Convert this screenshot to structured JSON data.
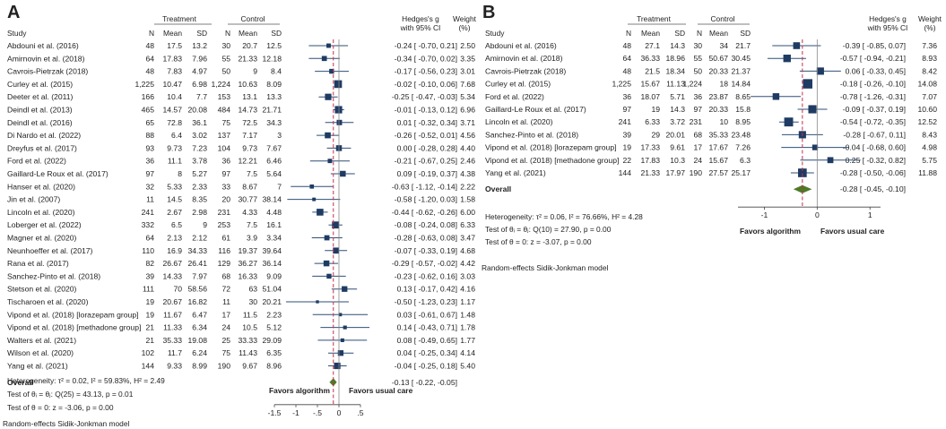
{
  "chart_data": [
    {
      "type": "forest",
      "panel_label": "A",
      "headers": {
        "study": "Study",
        "treatment": "Treatment",
        "control": "Control",
        "n": "N",
        "mean": "Mean",
        "sd": "SD",
        "effect_line1": "Hedges's g",
        "effect_line2": "with 95% CI",
        "weight_line1": "Weight",
        "weight_line2": "(%)"
      },
      "studies": [
        {
          "name": "Abdouni et al. (2016)",
          "t_n": "48",
          "t_mean": "17.5",
          "t_sd": "13.2",
          "c_n": "30",
          "c_mean": "20.7",
          "c_sd": "12.5",
          "g": -0.24,
          "lo": -0.7,
          "hi": 0.21,
          "ci": "-0.24 [ -0.70,  0.21]",
          "weight": "2.50"
        },
        {
          "name": "Amirnovin et al. (2018)",
          "t_n": "64",
          "t_mean": "17.83",
          "t_sd": "7.96",
          "c_n": "55",
          "c_mean": "21.33",
          "c_sd": "12.18",
          "g": -0.34,
          "lo": -0.7,
          "hi": 0.02,
          "ci": "-0.34 [ -0.70,  0.02]",
          "weight": "3.35"
        },
        {
          "name": "Cavrois-Pietrzak (2018)",
          "t_n": "48",
          "t_mean": "7.83",
          "t_sd": "4.97",
          "c_n": "50",
          "c_mean": "9",
          "c_sd": "8.4",
          "g": -0.17,
          "lo": -0.56,
          "hi": 0.23,
          "ci": "-0.17 [ -0.56,  0.23]",
          "weight": "3.01"
        },
        {
          "name": "Curley et al. (2015)",
          "t_n": "1,225",
          "t_mean": "10.47",
          "t_sd": "6.98",
          "c_n": "1,224",
          "c_mean": "10.63",
          "c_sd": "8.09",
          "g": -0.02,
          "lo": -0.1,
          "hi": 0.06,
          "ci": "-0.02 [ -0.10,  0.06]",
          "weight": "7.68"
        },
        {
          "name": "Deeter et al. (2011)",
          "t_n": "166",
          "t_mean": "10.4",
          "t_sd": "7.7",
          "c_n": "153",
          "c_mean": "13.1",
          "c_sd": "13.3",
          "g": -0.25,
          "lo": -0.47,
          "hi": -0.03,
          "ci": "-0.25 [ -0.47, -0.03]",
          "weight": "5.34"
        },
        {
          "name": "Deindl et al. (2013)",
          "t_n": "465",
          "t_mean": "14.57",
          "t_sd": "20.08",
          "c_n": "484",
          "c_mean": "14.73",
          "c_sd": "21.71",
          "g": -0.01,
          "lo": -0.13,
          "hi": 0.12,
          "ci": "-0.01 [ -0.13,  0.12]",
          "weight": "6.96"
        },
        {
          "name": "Deindl et al. (2016)",
          "t_n": "65",
          "t_mean": "72.8",
          "t_sd": "36.1",
          "c_n": "75",
          "c_mean": "72.5",
          "c_sd": "34.3",
          "g": 0.01,
          "lo": -0.32,
          "hi": 0.34,
          "ci": "0.01 [ -0.32,  0.34]",
          "weight": "3.71"
        },
        {
          "name": "Di Nardo et al. (2022)",
          "t_n": "88",
          "t_mean": "6.4",
          "t_sd": "3.02",
          "c_n": "137",
          "c_mean": "7.17",
          "c_sd": "3",
          "g": -0.26,
          "lo": -0.52,
          "hi": 0.01,
          "ci": "-0.26 [ -0.52,  0.01]",
          "weight": "4.56"
        },
        {
          "name": "Dreyfus et al. (2017)",
          "t_n": "93",
          "t_mean": "9.73",
          "t_sd": "7.23",
          "c_n": "104",
          "c_mean": "9.73",
          "c_sd": "7.67",
          "g": 0.0,
          "lo": -0.28,
          "hi": 0.28,
          "ci": "0.00 [ -0.28,  0.28]",
          "weight": "4.40"
        },
        {
          "name": "Ford et al. (2022)",
          "t_n": "36",
          "t_mean": "11.1",
          "t_sd": "3.78",
          "c_n": "36",
          "c_mean": "12.21",
          "c_sd": "6.46",
          "g": -0.21,
          "lo": -0.67,
          "hi": 0.25,
          "ci": "-0.21 [ -0.67,  0.25]",
          "weight": "2.46"
        },
        {
          "name": "Gaillard-Le Roux et al. (2017)",
          "t_n": "97",
          "t_mean": "8",
          "t_sd": "5.27",
          "c_n": "97",
          "c_mean": "7.5",
          "c_sd": "5.64",
          "g": 0.09,
          "lo": -0.19,
          "hi": 0.37,
          "ci": "0.09 [ -0.19,  0.37]",
          "weight": "4.38"
        },
        {
          "name": "Hanser et al. (2020)",
          "t_n": "32",
          "t_mean": "5.33",
          "t_sd": "2.33",
          "c_n": "33",
          "c_mean": "8.67",
          "c_sd": "7",
          "g": -0.63,
          "lo": -1.12,
          "hi": -0.14,
          "ci": "-0.63 [ -1.12, -0.14]",
          "weight": "2.22"
        },
        {
          "name": "Jin et al. (2007)",
          "t_n": "11",
          "t_mean": "14.5",
          "t_sd": "8.35",
          "c_n": "20",
          "c_mean": "30.77",
          "c_sd": "38.14",
          "g": -0.58,
          "lo": -1.2,
          "hi": 0.03,
          "ci": "-0.58 [ -1.20,  0.03]",
          "weight": "1.58"
        },
        {
          "name": "Lincoln et al. (2020)",
          "t_n": "241",
          "t_mean": "2.67",
          "t_sd": "2.98",
          "c_n": "231",
          "c_mean": "4.33",
          "c_sd": "4.48",
          "g": -0.44,
          "lo": -0.62,
          "hi": -0.26,
          "ci": "-0.44 [ -0.62, -0.26]",
          "weight": "6.00"
        },
        {
          "name": "Loberger et al. (2022)",
          "t_n": "332",
          "t_mean": "6.5",
          "t_sd": "9",
          "c_n": "253",
          "c_mean": "7.5",
          "c_sd": "16.1",
          "g": -0.08,
          "lo": -0.24,
          "hi": 0.08,
          "ci": "-0.08 [ -0.24,  0.08]",
          "weight": "6.33"
        },
        {
          "name": "Magner et al. (2020)",
          "t_n": "64",
          "t_mean": "2.13",
          "t_sd": "2.12",
          "c_n": "61",
          "c_mean": "3.9",
          "c_sd": "3.34",
          "g": -0.28,
          "lo": -0.63,
          "hi": 0.08,
          "ci": "-0.28 [ -0.63,  0.08]",
          "weight": "3.47"
        },
        {
          "name": "Neunhoeffer et al. (2017)",
          "t_n": "110",
          "t_mean": "16.9",
          "t_sd": "34.33",
          "c_n": "116",
          "c_mean": "19.37",
          "c_sd": "39.64",
          "g": -0.07,
          "lo": -0.33,
          "hi": 0.19,
          "ci": "-0.07 [ -0.33,  0.19]",
          "weight": "4.68"
        },
        {
          "name": "Rana et al. (2017)",
          "t_n": "82",
          "t_mean": "26.67",
          "t_sd": "26.41",
          "c_n": "129",
          "c_mean": "36.27",
          "c_sd": "36.14",
          "g": -0.29,
          "lo": -0.57,
          "hi": -0.02,
          "ci": "-0.29 [ -0.57, -0.02]",
          "weight": "4.42"
        },
        {
          "name": "Sanchez-Pinto et al. (2018)",
          "t_n": "39",
          "t_mean": "14.33",
          "t_sd": "7.97",
          "c_n": "68",
          "c_mean": "16.33",
          "c_sd": "9.09",
          "g": -0.23,
          "lo": -0.62,
          "hi": 0.16,
          "ci": "-0.23 [ -0.62,  0.16]",
          "weight": "3.03"
        },
        {
          "name": "Stetson et al. (2020)",
          "t_n": "111",
          "t_mean": "70",
          "t_sd": "58.56",
          "c_n": "72",
          "c_mean": "63",
          "c_sd": "51.04",
          "g": 0.13,
          "lo": -0.17,
          "hi": 0.42,
          "ci": "0.13 [ -0.17,  0.42]",
          "weight": "4.16"
        },
        {
          "name": "Tischaroen et al. (2020)",
          "t_n": "19",
          "t_mean": "20.67",
          "t_sd": "16.82",
          "c_n": "11",
          "c_mean": "30",
          "c_sd": "20.21",
          "g": -0.5,
          "lo": -1.23,
          "hi": 0.23,
          "ci": "-0.50 [ -1.23,  0.23]",
          "weight": "1.17"
        },
        {
          "name": "Vipond et al. (2018) [lorazepam group]",
          "t_n": "19",
          "t_mean": "11.67",
          "t_sd": "6.47",
          "c_n": "17",
          "c_mean": "11.5",
          "c_sd": "2.23",
          "g": 0.03,
          "lo": -0.61,
          "hi": 0.67,
          "ci": "0.03 [ -0.61,  0.67]",
          "weight": "1.48"
        },
        {
          "name": "Vipond et al. (2018) [methadone group]",
          "t_n": "21",
          "t_mean": "11.33",
          "t_sd": "6.34",
          "c_n": "24",
          "c_mean": "10.5",
          "c_sd": "5.12",
          "g": 0.14,
          "lo": -0.43,
          "hi": 0.71,
          "ci": "0.14 [ -0.43,  0.71]",
          "weight": "1.78"
        },
        {
          "name": "Walters et al. (2021)",
          "t_n": "21",
          "t_mean": "35.33",
          "t_sd": "19.08",
          "c_n": "25",
          "c_mean": "33.33",
          "c_sd": "29.09",
          "g": 0.08,
          "lo": -0.49,
          "hi": 0.65,
          "ci": "0.08 [ -0.49,  0.65]",
          "weight": "1.77"
        },
        {
          "name": "Wilson et al. (2020)",
          "t_n": "102",
          "t_mean": "11.7",
          "t_sd": "6.24",
          "c_n": "75",
          "c_mean": "11.43",
          "c_sd": "6.35",
          "g": 0.04,
          "lo": -0.25,
          "hi": 0.34,
          "ci": "0.04 [ -0.25,  0.34]",
          "weight": "4.14"
        },
        {
          "name": "Yang et al. (2021)",
          "t_n": "144",
          "t_mean": "9.33",
          "t_sd": "8.99",
          "c_n": "190",
          "c_mean": "9.67",
          "c_sd": "8.96",
          "g": -0.04,
          "lo": -0.25,
          "hi": 0.18,
          "ci": "-0.04 [ -0.25,  0.18]",
          "weight": "5.40"
        }
      ],
      "overall": {
        "label": "Overall",
        "g": -0.13,
        "lo": -0.22,
        "hi": -0.05,
        "ci": "-0.13 [ -0.22, -0.05]"
      },
      "heterogeneity": "Heterogeneity: τ² = 0.02, I² = 59.83%, H² = 2.49",
      "test_theta": "Test of θᵢ = θⱼ: Q(25) = 43.13, p = 0.01",
      "test_zero": "Test of θ = 0: z = -3.06, p = 0.00",
      "favors_left": "Favors algorithm",
      "favors_right": "Favors usual care",
      "xlim": [
        -1.5,
        0.5
      ],
      "ticks": [
        -1.5,
        -1,
        -0.5,
        0,
        0.5
      ],
      "tick_labels": [
        "-1.5",
        "-1",
        "-.5",
        "0",
        ".5"
      ],
      "model": "Random-effects Sidik-Jonkman model"
    },
    {
      "type": "forest",
      "panel_label": "B",
      "headers": {
        "study": "Study",
        "treatment": "Treatment",
        "control": "Control",
        "n": "N",
        "mean": "Mean",
        "sd": "SD",
        "effect_line1": "Hedges's g",
        "effect_line2": "with 95% CI",
        "weight_line1": "Weight",
        "weight_line2": "(%)"
      },
      "studies": [
        {
          "name": "Abdouni et al. (2016)",
          "t_n": "48",
          "t_mean": "27.1",
          "t_sd": "14.3",
          "c_n": "30",
          "c_mean": "34",
          "c_sd": "21.7",
          "g": -0.39,
          "lo": -0.85,
          "hi": 0.07,
          "ci": "-0.39 [ -0.85,  0.07]",
          "weight": "7.36"
        },
        {
          "name": "Amirnovin et al. (2018)",
          "t_n": "64",
          "t_mean": "36.33",
          "t_sd": "18.96",
          "c_n": "55",
          "c_mean": "50.67",
          "c_sd": "30.45",
          "g": -0.57,
          "lo": -0.94,
          "hi": -0.21,
          "ci": "-0.57 [ -0.94, -0.21]",
          "weight": "8.93"
        },
        {
          "name": "Cavrois-Pietrzak (2018)",
          "t_n": "48",
          "t_mean": "21.5",
          "t_sd": "18.34",
          "c_n": "50",
          "c_mean": "20.33",
          "c_sd": "21.37",
          "g": 0.06,
          "lo": -0.33,
          "hi": 0.45,
          "ci": "0.06 [ -0.33,  0.45]",
          "weight": "8.42"
        },
        {
          "name": "Curley et al. (2015)",
          "t_n": "1,225",
          "t_mean": "15.67",
          "t_sd": "11.13",
          "c_n": "1,224",
          "c_mean": "18",
          "c_sd": "14.84",
          "g": -0.18,
          "lo": -0.26,
          "hi": -0.1,
          "ci": "-0.18 [ -0.26, -0.10]",
          "weight": "14.08"
        },
        {
          "name": "Ford et al. (2022)",
          "t_n": "36",
          "t_mean": "18.07",
          "t_sd": "5.71",
          "c_n": "36",
          "c_mean": "23.87",
          "c_sd": "8.65",
          "g": -0.78,
          "lo": -1.26,
          "hi": -0.31,
          "ci": "-0.78 [ -1.26, -0.31]",
          "weight": "7.07"
        },
        {
          "name": "Gaillard-Le Roux et al. (2017)",
          "t_n": "97",
          "t_mean": "19",
          "t_sd": "14.3",
          "c_n": "97",
          "c_mean": "20.33",
          "c_sd": "15.8",
          "g": -0.09,
          "lo": -0.37,
          "hi": 0.19,
          "ci": "-0.09 [ -0.37,  0.19]",
          "weight": "10.60"
        },
        {
          "name": "Lincoln et al. (2020)",
          "t_n": "241",
          "t_mean": "6.33",
          "t_sd": "3.72",
          "c_n": "231",
          "c_mean": "10",
          "c_sd": "8.95",
          "g": -0.54,
          "lo": -0.72,
          "hi": -0.35,
          "ci": "-0.54 [ -0.72, -0.35]",
          "weight": "12.52"
        },
        {
          "name": "Sanchez-Pinto et al. (2018)",
          "t_n": "39",
          "t_mean": "29",
          "t_sd": "20.01",
          "c_n": "68",
          "c_mean": "35.33",
          "c_sd": "23.48",
          "g": -0.28,
          "lo": -0.67,
          "hi": 0.11,
          "ci": "-0.28 [ -0.67,  0.11]",
          "weight": "8.43"
        },
        {
          "name": "Vipond et al. (2018) [lorazepam group]",
          "t_n": "19",
          "t_mean": "17.33",
          "t_sd": "9.61",
          "c_n": "17",
          "c_mean": "17.67",
          "c_sd": "7.26",
          "g": -0.04,
          "lo": -0.68,
          "hi": 0.6,
          "ci": "-0.04 [ -0.68,  0.60]",
          "weight": "4.98"
        },
        {
          "name": "Vipond et al. (2018) [methadone group]",
          "t_n": "22",
          "t_mean": "17.83",
          "t_sd": "10.3",
          "c_n": "24",
          "c_mean": "15.67",
          "c_sd": "6.3",
          "g": 0.25,
          "lo": -0.32,
          "hi": 0.82,
          "ci": "0.25 [ -0.32,  0.82]",
          "weight": "5.75"
        },
        {
          "name": "Yang et al. (2021)",
          "t_n": "144",
          "t_mean": "21.33",
          "t_sd": "17.97",
          "c_n": "190",
          "c_mean": "27.57",
          "c_sd": "25.17",
          "g": -0.28,
          "lo": -0.5,
          "hi": -0.06,
          "ci": "-0.28 [ -0.50, -0.06]",
          "weight": "11.88"
        }
      ],
      "overall": {
        "label": "Overall",
        "g": -0.28,
        "lo": -0.45,
        "hi": -0.1,
        "ci": "-0.28 [ -0.45, -0.10]"
      },
      "heterogeneity": "Heterogeneity: τ² = 0.06, I² = 76.66%, H² = 4.28",
      "test_theta": "Test of θᵢ = θⱼ: Q(10) = 27.90, p = 0.00",
      "test_zero": "Test of θ = 0: z = -3.07, p = 0.00",
      "favors_left": "Favors algorithm",
      "favors_right": "Favors usual care",
      "xlim": [
        -1.5,
        1.2
      ],
      "ticks": [
        -1,
        0,
        1
      ],
      "tick_labels": [
        "-1",
        "0",
        "1"
      ],
      "model": "Random-effects Sidik-Jonkman model"
    }
  ],
  "colors": {
    "marker": "#1f3b63",
    "ci_line": "#2f4f77",
    "overall_diamond": "#4e7a27",
    "null_line": "#c0334d",
    "text": "#222222",
    "rule": "#555555"
  }
}
